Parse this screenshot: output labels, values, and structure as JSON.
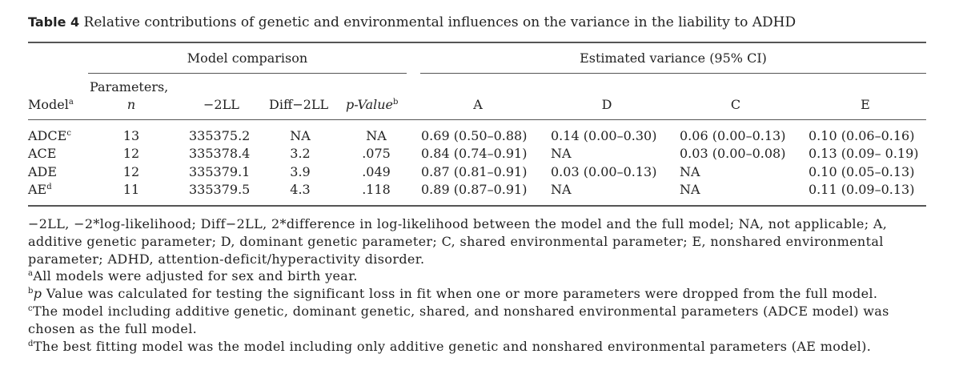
{
  "caption": {
    "label": "Table 4",
    "text": "Relative contributions of genetic and environmental influences on the variance in the liability to ADHD"
  },
  "headers": {
    "group1": "Model comparison",
    "group2": "Estimated variance (95% CI)",
    "model": "Model",
    "model_sup": "a",
    "parameters_line1": "Parameters,",
    "parameters_line2": "n",
    "neg2ll": "−2LL",
    "diff2ll": "Diff−2LL",
    "pvalue": "p-Value",
    "pvalue_sup": "b",
    "a": "A",
    "d": "D",
    "c": "C",
    "e": "E"
  },
  "rows": [
    {
      "model": "ADCE",
      "sup": "c",
      "n": "13",
      "neg2ll": "335375.2",
      "diff": "NA",
      "p": "NA",
      "a": "0.69 (0.50–0.88)",
      "d": "0.14 (0.00–0.30)",
      "c": "0.06 (0.00–0.13)",
      "e": "0.10 (0.06–0.16)"
    },
    {
      "model": "ACE",
      "sup": "",
      "n": "12",
      "neg2ll": "335378.4",
      "diff": "3.2",
      "p": ".075",
      "a": "0.84 (0.74–0.91)",
      "d": "NA",
      "c": "0.03 (0.00–0.08)",
      "e": "0.13 (0.09– 0.19)"
    },
    {
      "model": "ADE",
      "sup": "",
      "n": "12",
      "neg2ll": "335379.1",
      "diff": "3.9",
      "p": ".049",
      "a": "0.87 (0.81–0.91)",
      "d": "0.03 (0.00–0.13)",
      "c": "NA",
      "e": "0.10 (0.05–0.13)"
    },
    {
      "model": "AE",
      "sup": "d",
      "n": "11",
      "neg2ll": "335379.5",
      "diff": "4.3",
      "p": ".118",
      "a": "0.89 (0.87–0.91)",
      "d": "NA",
      "c": "NA",
      "e": "0.11 (0.09–0.13)"
    }
  ],
  "footnotes": {
    "abbrev_line1": "−2LL, −2*log-likelihood; Diff−2LL, 2*difference in log-likelihood between the model and the full model; NA, not applicable; A,",
    "abbrev_line2": "additive genetic parameter; D, dominant genetic parameter; C, shared environmental parameter; E, nonshared environmental",
    "abbrev_line3": "parameter; ADHD, attention-deficit/hyperactivity disorder.",
    "a_mark": "a",
    "a_text": "All models were adjusted for sex and birth year.",
    "b_mark": "b",
    "b_italic": "p",
    "b_text": " Value was calculated for testing the significant loss in fit when one or more parameters were dropped from the full model.",
    "c_mark": "c",
    "c_line1": "The model including additive genetic, dominant genetic, shared, and nonshared environmental parameters (ADCE model) was",
    "c_line2": "chosen as the full model.",
    "d_mark": "d",
    "d_text": "The best fitting model was the model including only additive genetic and nonshared environmental parameters (AE model)."
  }
}
